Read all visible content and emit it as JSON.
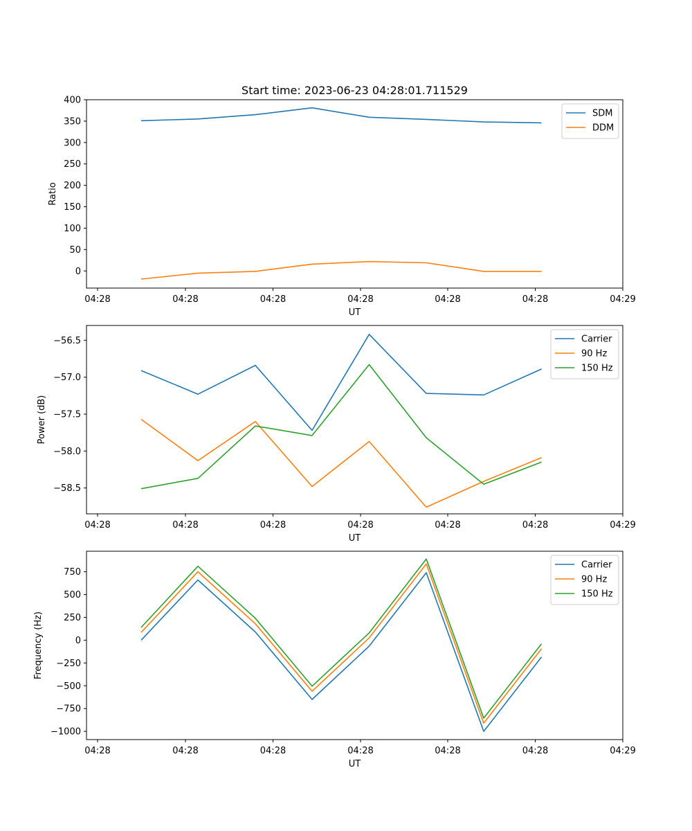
{
  "figure": {
    "title": "Start time: 2023-06-23 04:28:01.711529"
  },
  "chart_data": [
    {
      "type": "line",
      "title": "Start time: 2023-06-23 04:28:01.711529",
      "xlabel": "UT",
      "ylabel": "Ratio",
      "x_tick_labels": [
        "04:28",
        "04:28",
        "04:28",
        "04:28",
        "04:28",
        "04:28",
        "04:29"
      ],
      "y_tick_labels": [
        "0",
        "50",
        "100",
        "150",
        "200",
        "250",
        "300",
        "350",
        "400"
      ],
      "ylim": [
        -40,
        400
      ],
      "legend_position": "top-right",
      "grid": false,
      "series": [
        {
          "name": "SDM",
          "color": "#1f77b4",
          "values": [
            351,
            355,
            365,
            381,
            359,
            354,
            348,
            346
          ]
        },
        {
          "name": "DDM",
          "color": "#ff7f0e",
          "values": [
            -19,
            -5,
            -1,
            16,
            22,
            19,
            -1,
            -1
          ]
        }
      ]
    },
    {
      "type": "line",
      "title": "",
      "xlabel": "UT",
      "ylabel": "Power (dB)",
      "x_tick_labels": [
        "04:28",
        "04:28",
        "04:28",
        "04:28",
        "04:28",
        "04:28",
        "04:29"
      ],
      "y_tick_labels": [
        "−58.5",
        "−58.0",
        "−57.5",
        "−57.0",
        "−56.5"
      ],
      "ylim": [
        -58.85,
        -56.3
      ],
      "legend_position": "top-right",
      "grid": false,
      "series": [
        {
          "name": "Carrier",
          "color": "#1f77b4",
          "values": [
            -56.91,
            -57.23,
            -56.84,
            -57.72,
            -56.42,
            -57.22,
            -57.24,
            -56.89
          ]
        },
        {
          "name": "90 Hz",
          "color": "#ff7f0e",
          "values": [
            -57.57,
            -58.13,
            -57.6,
            -58.48,
            -57.87,
            -58.76,
            -58.41,
            -58.09
          ]
        },
        {
          "name": "150 Hz",
          "color": "#2ca02c",
          "values": [
            -58.51,
            -58.37,
            -57.66,
            -57.79,
            -56.83,
            -57.82,
            -58.45,
            -58.15
          ]
        }
      ]
    },
    {
      "type": "line",
      "title": "",
      "xlabel": "UT",
      "ylabel": "Frequency (Hz)",
      "x_tick_labels": [
        "04:28",
        "04:28",
        "04:28",
        "04:28",
        "04:28",
        "04:28",
        "04:29"
      ],
      "y_tick_labels": [
        "−1000",
        "−750",
        "−500",
        "−250",
        "0",
        "250",
        "500",
        "750"
      ],
      "ylim": [
        -1090,
        975
      ],
      "legend_position": "top-right",
      "grid": false,
      "series": [
        {
          "name": "Carrier",
          "color": "#1f77b4",
          "values": [
            0,
            660,
            90,
            -650,
            -65,
            740,
            -1000,
            -185
          ]
        },
        {
          "name": "90 Hz",
          "color": "#ff7f0e",
          "values": [
            85,
            750,
            180,
            -560,
            25,
            835,
            -910,
            -95
          ]
        },
        {
          "name": "150 Hz",
          "color": "#2ca02c",
          "values": [
            140,
            810,
            240,
            -505,
            80,
            890,
            -855,
            -40
          ]
        }
      ]
    }
  ]
}
